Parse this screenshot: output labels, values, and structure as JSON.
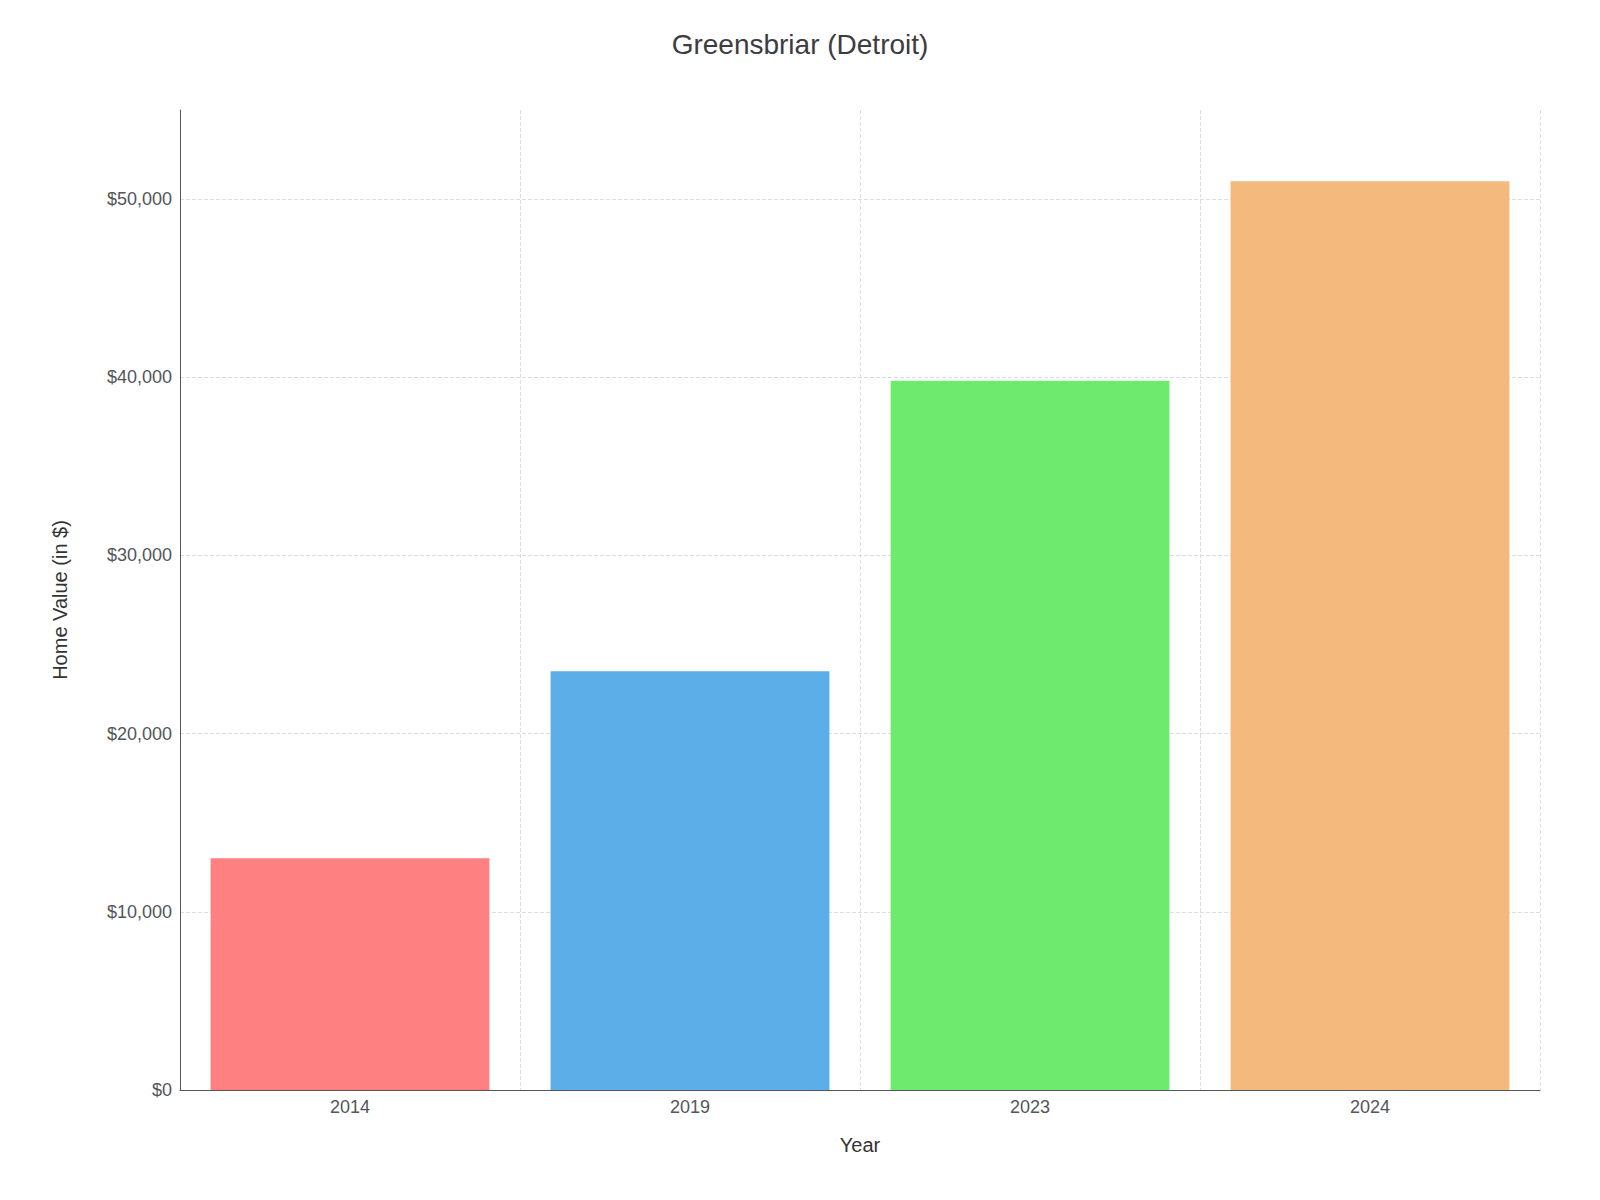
{
  "chart_data": {
    "type": "bar",
    "title": "Greensbriar (Detroit)",
    "xlabel": "Year",
    "ylabel": "Home Value (in $)",
    "categories": [
      "2014",
      "2019",
      "2023",
      "2024"
    ],
    "values": [
      13000,
      23500,
      39800,
      51000
    ],
    "colors": [
      "#FF8080",
      "#5BAEE8",
      "#6EEB6E",
      "#F4B97C"
    ],
    "ylim": [
      0,
      55000
    ],
    "yticks": [
      {
        "value": 0,
        "label": "$0"
      },
      {
        "value": 10000,
        "label": "$10,000"
      },
      {
        "value": 20000,
        "label": "$20,000"
      },
      {
        "value": 30000,
        "label": "$30,000"
      },
      {
        "value": 40000,
        "label": "$40,000"
      },
      {
        "value": 50000,
        "label": "$50,000"
      }
    ],
    "grid": true
  }
}
